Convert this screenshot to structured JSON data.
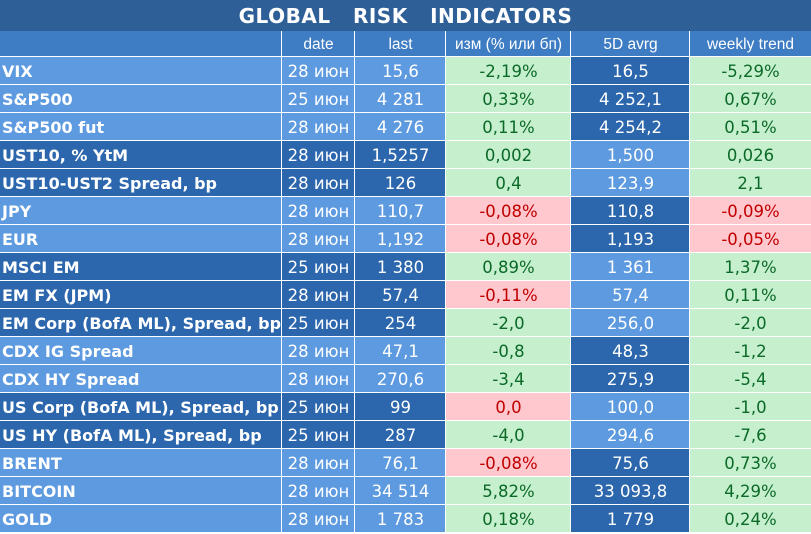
{
  "title": "GLOBAL   RISK   INDICATORS",
  "headers": [
    "",
    "date",
    "last",
    "изм (% или бп)",
    "5D avrg",
    "weekly trend"
  ],
  "colors": {
    "title_bg": "#2f5f97",
    "header_bg": "#3e7cc4",
    "band_dark": "#2c67ad",
    "band_light": "#5d9ae0",
    "positive_bg": "#c6efce",
    "positive_text": "#0b6a27",
    "negative_bg": "#ffc7ce",
    "negative_text": "#c00000"
  },
  "groups": [
    {
      "shade": "light",
      "rows": [
        {
          "name": "VIX",
          "date": "28 июн",
          "last": "15,6",
          "change": "-2,19%",
          "change_tone": "positive",
          "avg5d": "16,5",
          "weekly": "-5,29%",
          "weekly_tone": "positive"
        },
        {
          "name": "S&P500",
          "date": "25 июн",
          "last": "4 281",
          "change": "0,33%",
          "change_tone": "positive",
          "avg5d": "4 252,1",
          "weekly": "0,67%",
          "weekly_tone": "positive"
        },
        {
          "name": "S&P500 fut",
          "date": "28 июн",
          "last": "4 276",
          "change": "0,11%",
          "change_tone": "positive",
          "avg5d": "4 254,2",
          "weekly": "0,51%",
          "weekly_tone": "positive"
        }
      ]
    },
    {
      "shade": "dark",
      "rows": [
        {
          "name": "UST10, % YtM",
          "date": "28 июн",
          "last": "1,5257",
          "change": "0,002",
          "change_tone": "positive",
          "avg5d": "1,500",
          "weekly": "0,026",
          "weekly_tone": "positive"
        },
        {
          "name": "UST10-UST2 Spread, bp",
          "date": "28 июн",
          "last": "126",
          "change": "0,4",
          "change_tone": "positive",
          "avg5d": "123,9",
          "weekly": "2,1",
          "weekly_tone": "positive"
        }
      ]
    },
    {
      "shade": "light",
      "rows": [
        {
          "name": "JPY",
          "date": "28 июн",
          "last": "110,7",
          "change": "-0,08%",
          "change_tone": "negative",
          "avg5d": "110,8",
          "weekly": "-0,09%",
          "weekly_tone": "negative"
        },
        {
          "name": "EUR",
          "date": "28 июн",
          "last": "1,192",
          "change": "-0,08%",
          "change_tone": "negative",
          "avg5d": "1,193",
          "weekly": "-0,05%",
          "weekly_tone": "negative"
        }
      ]
    },
    {
      "shade": "dark",
      "rows": [
        {
          "name": "MSCI EM",
          "date": "25 июн",
          "last": "1 380",
          "change": "0,89%",
          "change_tone": "positive",
          "avg5d": "1 361",
          "weekly": "1,37%",
          "weekly_tone": "positive"
        },
        {
          "name": "EM FX (JPM)",
          "date": "28 июн",
          "last": "57,4",
          "change": "-0,11%",
          "change_tone": "negative",
          "avg5d": "57,4",
          "weekly": "0,11%",
          "weekly_tone": "positive"
        },
        {
          "name": "EM Corp (BofA ML), Spread, bp",
          "date": "25 июн",
          "last": "254",
          "change": "-2,0",
          "change_tone": "positive",
          "avg5d": "256,0",
          "weekly": "-2,0",
          "weekly_tone": "positive"
        }
      ]
    },
    {
      "shade": "light",
      "rows": [
        {
          "name": "CDX IG Spread",
          "date": "28 июн",
          "last": "47,1",
          "change": "-0,8",
          "change_tone": "positive",
          "avg5d": "48,3",
          "weekly": "-1,2",
          "weekly_tone": "positive"
        },
        {
          "name": "CDX HY Spread",
          "date": "28 июн",
          "last": "270,6",
          "change": "-3,4",
          "change_tone": "positive",
          "avg5d": "275,9",
          "weekly": "-5,4",
          "weekly_tone": "positive"
        }
      ]
    },
    {
      "shade": "dark",
      "rows": [
        {
          "name": "US Corp (BofA ML), Spread, bp",
          "date": "25 июн",
          "last": "99",
          "change": "0,0",
          "change_tone": "negative",
          "avg5d": "100,0",
          "weekly": "-1,0",
          "weekly_tone": "positive"
        },
        {
          "name": "US HY (BofA ML), Spread, bp",
          "date": "25 июн",
          "last": "287",
          "change": "-4,0",
          "change_tone": "positive",
          "avg5d": "294,6",
          "weekly": "-7,6",
          "weekly_tone": "positive"
        }
      ]
    },
    {
      "shade": "light",
      "rows": [
        {
          "name": "BRENT",
          "date": "28 июн",
          "last": "76,1",
          "change": "-0,08%",
          "change_tone": "negative",
          "avg5d": "75,6",
          "weekly": "0,73%",
          "weekly_tone": "positive"
        },
        {
          "name": "BITCOIN",
          "date": "28 июн",
          "last": "34 514",
          "change": "5,82%",
          "change_tone": "positive",
          "avg5d": "33 093,8",
          "weekly": "4,29%",
          "weekly_tone": "positive"
        },
        {
          "name": "GOLD",
          "date": "28 июн",
          "last": "1 783",
          "change": "0,18%",
          "change_tone": "positive",
          "avg5d": "1 779",
          "weekly": "0,24%",
          "weekly_tone": "positive"
        }
      ]
    }
  ]
}
